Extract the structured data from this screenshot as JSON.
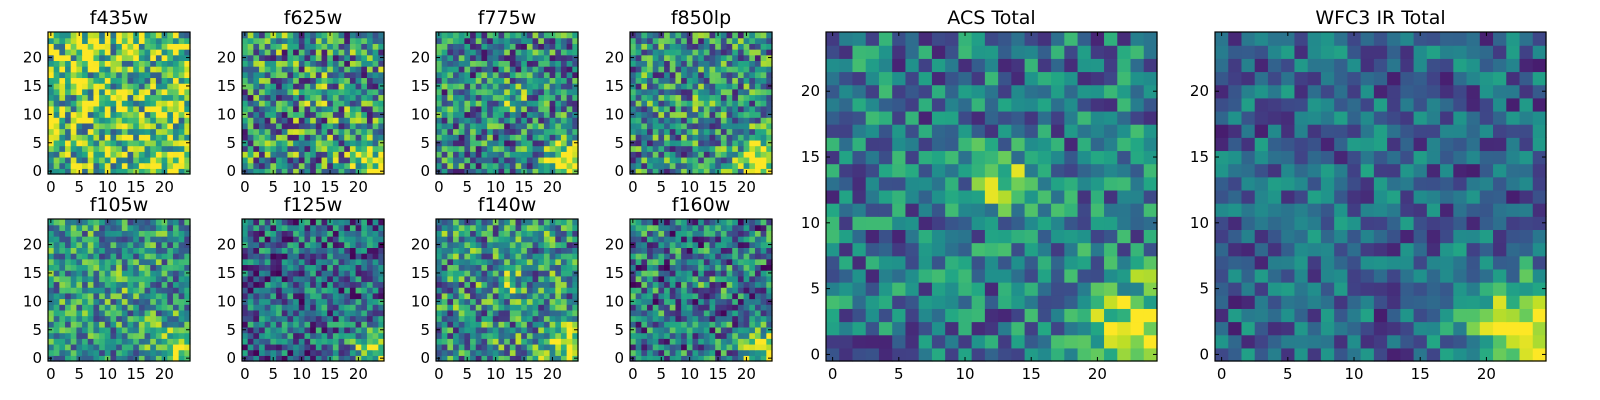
{
  "figure": {
    "description_free": true
  },
  "chart_data": [
    {
      "type": "heatmap",
      "title": "f435w",
      "xlim": [
        0,
        24
      ],
      "ylim": [
        0,
        24
      ],
      "xticks": [
        0,
        5,
        10,
        15,
        20
      ],
      "yticks": [
        0,
        5,
        10,
        15,
        20
      ],
      "grid": "25x25",
      "colormap": "viridis",
      "seed": 11,
      "bias": 0.72,
      "noise": 0.45,
      "blob_bottom_right": 0.2,
      "blob_center": 0.05
    },
    {
      "type": "heatmap",
      "title": "f625w",
      "xlim": [
        0,
        24
      ],
      "ylim": [
        0,
        24
      ],
      "xticks": [
        0,
        5,
        10,
        15,
        20
      ],
      "yticks": [
        0,
        5,
        10,
        15,
        20
      ],
      "grid": "25x25",
      "colormap": "viridis",
      "seed": 23,
      "bias": 0.5,
      "noise": 0.45,
      "blob_bottom_right": 0.4,
      "blob_center": 0.2
    },
    {
      "type": "heatmap",
      "title": "f775w",
      "xlim": [
        0,
        24
      ],
      "ylim": [
        0,
        24
      ],
      "xticks": [
        0,
        5,
        10,
        15,
        20
      ],
      "yticks": [
        0,
        5,
        10,
        15,
        20
      ],
      "grid": "25x25",
      "colormap": "viridis",
      "seed": 37,
      "bias": 0.45,
      "noise": 0.4,
      "blob_bottom_right": 0.55,
      "blob_center": 0.25
    },
    {
      "type": "heatmap",
      "title": "f850lp",
      "xlim": [
        0,
        24
      ],
      "ylim": [
        0,
        24
      ],
      "xticks": [
        0,
        5,
        10,
        15,
        20
      ],
      "yticks": [
        0,
        5,
        10,
        15,
        20
      ],
      "grid": "25x25",
      "colormap": "viridis",
      "seed": 41,
      "bias": 0.48,
      "noise": 0.4,
      "blob_bottom_right": 0.55,
      "blob_center": 0.2
    },
    {
      "type": "heatmap",
      "title": "f105w",
      "xlim": [
        0,
        24
      ],
      "ylim": [
        0,
        24
      ],
      "xticks": [
        0,
        5,
        10,
        15,
        20
      ],
      "yticks": [
        0,
        5,
        10,
        15,
        20
      ],
      "grid": "25x25",
      "colormap": "viridis",
      "seed": 53,
      "bias": 0.52,
      "noise": 0.35,
      "blob_bottom_right": 0.45,
      "blob_center": 0.1
    },
    {
      "type": "heatmap",
      "title": "f125w",
      "xlim": [
        0,
        24
      ],
      "ylim": [
        0,
        24
      ],
      "xticks": [
        0,
        5,
        10,
        15,
        20
      ],
      "yticks": [
        0,
        5,
        10,
        15,
        20
      ],
      "grid": "25x25",
      "colormap": "viridis",
      "seed": 67,
      "bias": 0.35,
      "noise": 0.35,
      "blob_bottom_right": 0.5,
      "blob_center": 0.05
    },
    {
      "type": "heatmap",
      "title": "f140w",
      "xlim": [
        0,
        24
      ],
      "ylim": [
        0,
        24
      ],
      "xticks": [
        0,
        5,
        10,
        15,
        20
      ],
      "yticks": [
        0,
        5,
        10,
        15,
        20
      ],
      "grid": "25x25",
      "colormap": "viridis",
      "seed": 79,
      "bias": 0.5,
      "noise": 0.4,
      "blob_bottom_right": 0.45,
      "blob_center": 0.2
    },
    {
      "type": "heatmap",
      "title": "f160w",
      "xlim": [
        0,
        24
      ],
      "ylim": [
        0,
        24
      ],
      "xticks": [
        0,
        5,
        10,
        15,
        20
      ],
      "yticks": [
        0,
        5,
        10,
        15,
        20
      ],
      "grid": "25x25",
      "colormap": "viridis",
      "seed": 83,
      "bias": 0.4,
      "noise": 0.4,
      "blob_bottom_right": 0.55,
      "blob_center": 0.1
    },
    {
      "type": "heatmap",
      "title": "ACS Total",
      "xlim": [
        0,
        24
      ],
      "ylim": [
        0,
        24
      ],
      "xticks": [
        0,
        5,
        10,
        15,
        20
      ],
      "yticks": [
        0,
        5,
        10,
        15,
        20
      ],
      "grid": "25x25",
      "colormap": "viridis",
      "seed": 97,
      "bias": 0.4,
      "noise": 0.3,
      "blob_bottom_right": 0.6,
      "blob_center": 0.45
    },
    {
      "type": "heatmap",
      "title": "WFC3 IR Total",
      "xlim": [
        0,
        24
      ],
      "ylim": [
        0,
        24
      ],
      "xticks": [
        0,
        5,
        10,
        15,
        20
      ],
      "yticks": [
        0,
        5,
        10,
        15,
        20
      ],
      "grid": "25x25",
      "colormap": "viridis",
      "seed": 101,
      "bias": 0.33,
      "noise": 0.25,
      "blob_bottom_right": 0.7,
      "blob_center": 0.1
    }
  ]
}
